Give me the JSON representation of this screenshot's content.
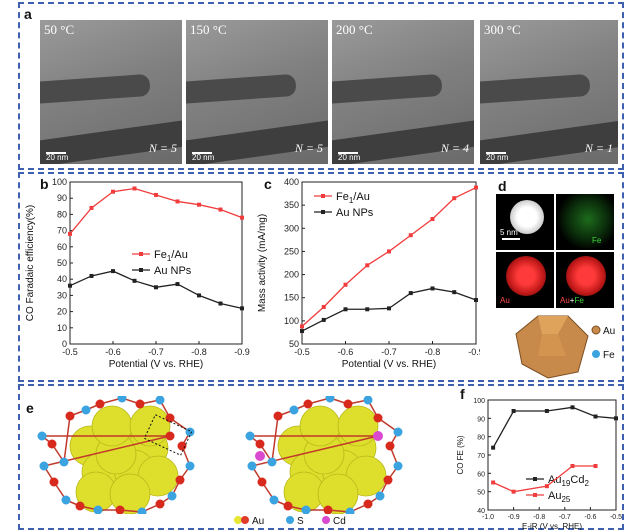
{
  "panel_a": {
    "label": "a",
    "images": [
      {
        "temp": "50 °C",
        "n": "N = 5",
        "scale": "20 nm"
      },
      {
        "temp": "150 °C",
        "n": "N = 5",
        "scale": "20 nm"
      },
      {
        "temp": "200 °C",
        "n": "N = 4",
        "scale": "20 nm"
      },
      {
        "temp": "300 °C",
        "n": "N = 1",
        "scale": "20 nm"
      }
    ]
  },
  "panel_b": {
    "label": "b"
  },
  "panel_c": {
    "label": "c"
  },
  "panel_d": {
    "label": "d",
    "scale": "5 nm",
    "fe_label": "Fe",
    "au_label": "Au",
    "overlay_label": "Au+Fe",
    "legend_au": "Au",
    "legend_fe": "Fe"
  },
  "panel_e": {
    "label": "e",
    "legend": [
      "Au",
      "S",
      "Cd"
    ]
  },
  "panel_f": {
    "label": "f"
  },
  "colors": {
    "red": "#f03c3c",
    "black": "#222222",
    "frame": "#3f5fb0",
    "gold": "#e6e633",
    "blue": "#3aa3e0"
  },
  "chart_data": [
    {
      "id": "b",
      "type": "line",
      "xlabel": "Potential (V vs. RHE)",
      "ylabel": "CO Faradaic efficiency(%)",
      "x": [
        -0.5,
        -0.55,
        -0.6,
        -0.65,
        -0.7,
        -0.75,
        -0.8,
        -0.85,
        -0.9
      ],
      "xticks": [
        "-0.5",
        "-0.6",
        "-0.7",
        "-0.8",
        "-0.9"
      ],
      "xlim": [
        -0.5,
        -0.9
      ],
      "ylim": [
        0,
        100
      ],
      "yticks": [
        "0",
        "10",
        "20",
        "30",
        "40",
        "50",
        "60",
        "70",
        "80",
        "90",
        "100"
      ],
      "legend_position": "right",
      "series": [
        {
          "name": "Fe1/Au",
          "name_main": "Fe",
          "name_sub": "1",
          "name_tail": "/Au",
          "color": "#f03c3c",
          "values": [
            68,
            84,
            94,
            96,
            92,
            88,
            86,
            83,
            78
          ]
        },
        {
          "name": "Au NPs",
          "color": "#222222",
          "values": [
            36,
            42,
            45,
            39,
            35,
            37,
            30,
            25,
            22
          ]
        }
      ]
    },
    {
      "id": "c",
      "type": "line",
      "xlabel": "Potential (V vs. RHE)",
      "ylabel": "Mass activity (mA/mg)",
      "x": [
        -0.5,
        -0.55,
        -0.6,
        -0.65,
        -0.7,
        -0.75,
        -0.8,
        -0.85,
        -0.9
      ],
      "xticks": [
        "-0.5",
        "-0.6",
        "-0.7",
        "-0.8",
        "-0.9"
      ],
      "xlim": [
        -0.5,
        -0.9
      ],
      "ylim": [
        50,
        400
      ],
      "yticks": [
        "50",
        "100",
        "150",
        "200",
        "250",
        "300",
        "350",
        "400"
      ],
      "legend_position": "top-left",
      "series": [
        {
          "name": "Fe1/Au",
          "name_main": "Fe",
          "name_sub": "1",
          "name_tail": "/Au",
          "color": "#f03c3c",
          "values": [
            88,
            130,
            178,
            220,
            250,
            285,
            320,
            365,
            388
          ]
        },
        {
          "name": "Au NPs",
          "color": "#222222",
          "values": [
            78,
            102,
            125,
            125,
            127,
            160,
            170,
            162,
            145
          ]
        }
      ]
    },
    {
      "id": "f",
      "type": "line",
      "xlabel": "E-iR (V vs. RHE)",
      "ylabel": "CO FE (%)",
      "xticks": [
        "-1.0",
        "-0.9",
        "-0.8",
        "-0.7",
        "-0.6",
        "-0.5"
      ],
      "xlim": [
        -1.0,
        -0.5
      ],
      "ylim": [
        40,
        100
      ],
      "yticks": [
        "40",
        "50",
        "60",
        "70",
        "80",
        "90",
        "100"
      ],
      "legend_position": "bottom-right",
      "series": [
        {
          "name": "Au19Cd2",
          "name_main": "Au",
          "name_sub": "19",
          "name_tail": "Cd",
          "name_sub2": "2",
          "color": "#222222",
          "x": [
            -0.98,
            -0.9,
            -0.77,
            -0.67,
            -0.58,
            -0.5
          ],
          "values": [
            74,
            94,
            94,
            96,
            91,
            90
          ]
        },
        {
          "name": "Au25",
          "name_main": "Au",
          "name_sub": "25",
          "color": "#f03c3c",
          "x": [
            -0.98,
            -0.9,
            -0.77,
            -0.67,
            -0.58
          ],
          "values": [
            55,
            50,
            53,
            64,
            64
          ]
        }
      ]
    }
  ]
}
